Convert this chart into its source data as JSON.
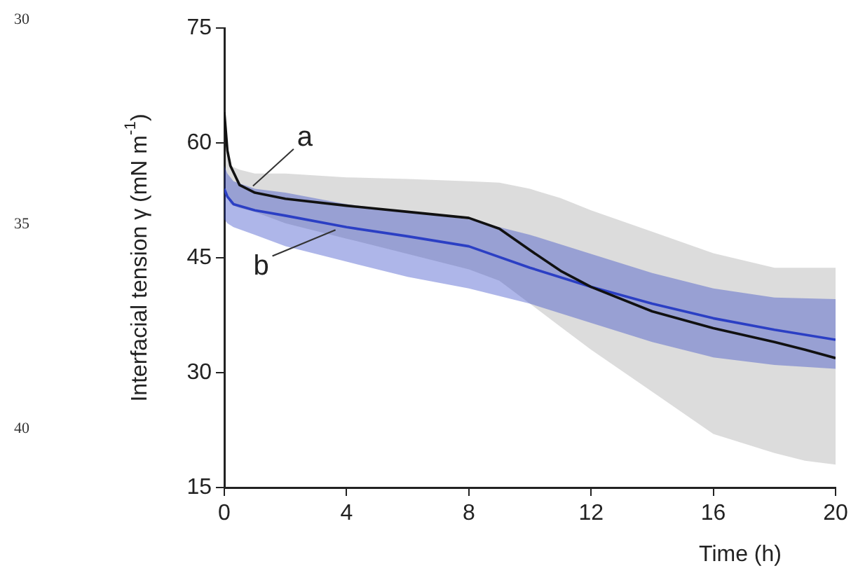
{
  "chart_data": {
    "type": "line",
    "xlabel": "Time (h)",
    "ylabel": "Interfacial tension γ (mN m$^{-1}$)",
    "xlim": [
      0,
      20
    ],
    "xticks": [
      0,
      4,
      8,
      12,
      16,
      20
    ],
    "ylim": [
      15,
      75
    ],
    "yticks": [
      15,
      30,
      45,
      60,
      75
    ],
    "grid": false,
    "legend": false,
    "marker": "none",
    "line_style": "solid",
    "annotations": [
      {
        "text": "a",
        "x": 0.8,
        "y": 54
      },
      {
        "text": "b",
        "x": 3.5,
        "y": 49
      },
      "30",
      "35",
      "40"
    ],
    "series": [
      {
        "color": "#111111",
        "x": [
          0,
          0.1,
          0.2,
          0.5,
          1,
          2,
          4,
          6,
          8,
          9,
          10,
          11,
          12,
          14,
          16,
          18,
          19,
          20
        ],
        "values": [
          64,
          59,
          57,
          54.5,
          53.5,
          52.7,
          51.8,
          51,
          50.2,
          48.8,
          46,
          43.3,
          41.2,
          38,
          35.8,
          34,
          33,
          31.9
        ],
        "lower": [
          55,
          53,
          52,
          51.5,
          51,
          49.5,
          47.5,
          45.5,
          43.5,
          42,
          39,
          36,
          33,
          27.5,
          22,
          19.5,
          18.5,
          18
        ],
        "upper": [
          60,
          58,
          57,
          56.5,
          56,
          56,
          55.5,
          55.3,
          55,
          54.8,
          54,
          52.8,
          51.2,
          48.4,
          45.6,
          43.7,
          43.7,
          43.7
        ]
      },
      {
        "color": "#2b3fc4",
        "x": [
          0,
          0.1,
          0.3,
          1,
          2,
          4,
          6,
          8,
          10,
          12,
          14,
          16,
          18,
          20
        ],
        "values": [
          54,
          53,
          52,
          51.2,
          50.5,
          49,
          47.8,
          46.5,
          43.7,
          41.2,
          39,
          37.1,
          35.6,
          34.3
        ],
        "lower": [
          50,
          49.5,
          49,
          48,
          46.5,
          44.5,
          42.5,
          41,
          39,
          36.5,
          34,
          32,
          31,
          30.5
        ],
        "upper": [
          57,
          56,
          55,
          54,
          53.5,
          52,
          51,
          50,
          48,
          45.5,
          43,
          41,
          39.8,
          39.6
        ]
      }
    ]
  }
}
